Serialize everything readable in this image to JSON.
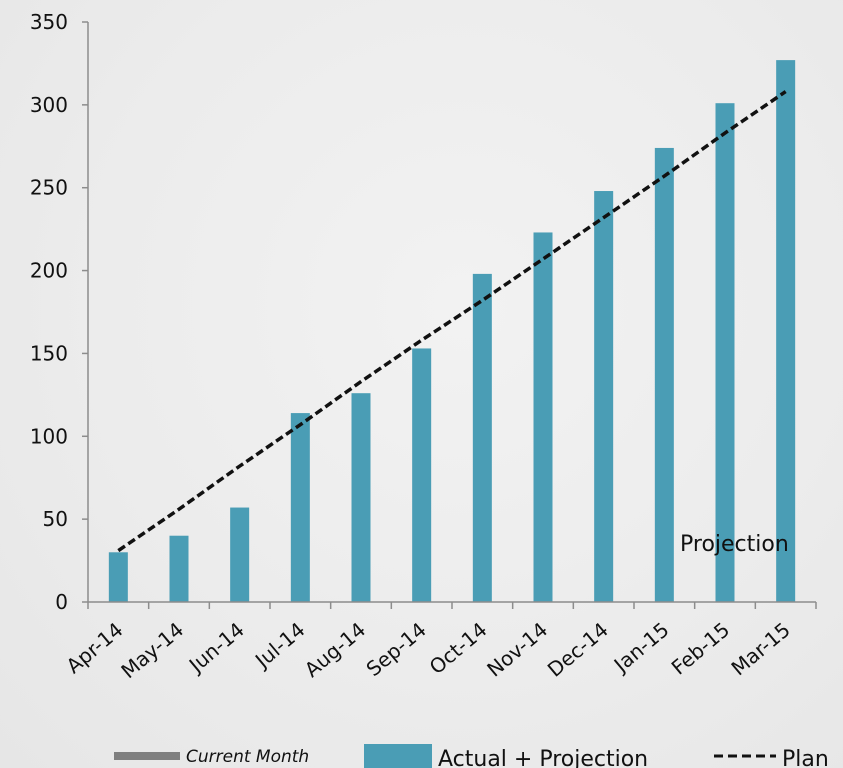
{
  "chart_data": {
    "type": "bar",
    "categories": [
      "Apr-14",
      "May-14",
      "Jun-14",
      "Jul-14",
      "Aug-14",
      "Sep-14",
      "Oct-14",
      "Nov-14",
      "Dec-14",
      "Jan-15",
      "Feb-15",
      "Mar-15"
    ],
    "series": [
      {
        "name": "Actual + Projection",
        "type": "bar",
        "color": "#4a9db5",
        "values": [
          30,
          40,
          57,
          114,
          126,
          153,
          198,
          223,
          248,
          274,
          301,
          327
        ]
      },
      {
        "name": "Plan",
        "type": "line",
        "style": "dashed",
        "color": "#111111",
        "values": [
          31,
          56,
          82,
          107,
          133,
          158,
          182,
          207,
          232,
          257,
          283,
          308
        ]
      }
    ],
    "current_month_label": "Current Month",
    "annotation": "Projection",
    "ylim": [
      0,
      350
    ],
    "yticks": [
      0,
      50,
      100,
      150,
      200,
      250,
      300,
      350
    ],
    "grid": false,
    "legend_position": "bottom"
  }
}
